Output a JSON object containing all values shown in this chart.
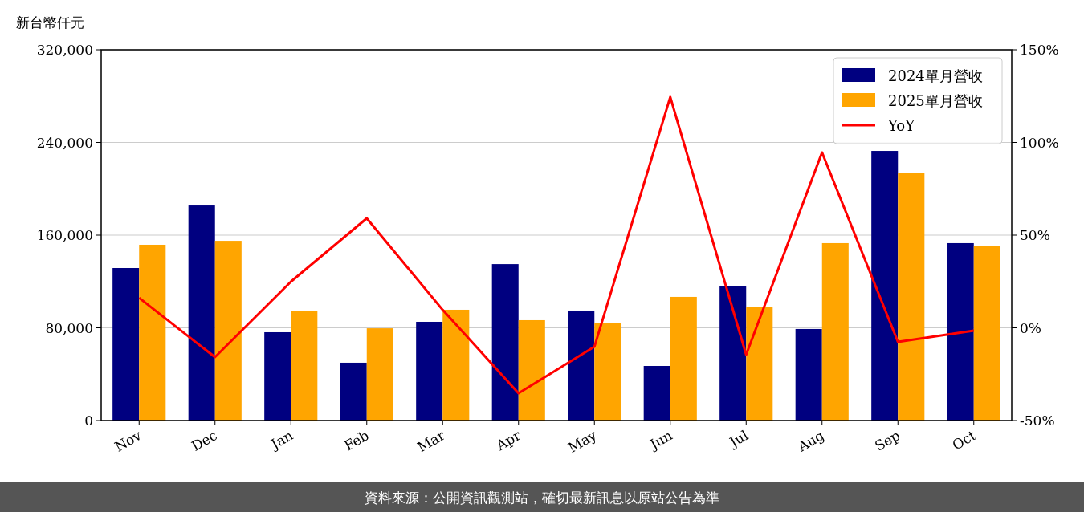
{
  "chart_data": {
    "type": "bar",
    "ylabel": "新台幣仟元",
    "categories": [
      "Nov",
      "Dec",
      "Jan",
      "Feb",
      "Mar",
      "Apr",
      "May",
      "Jun",
      "Jul",
      "Aug",
      "Sep",
      "Oct"
    ],
    "series": [
      {
        "name": "2024單月營收",
        "color": "#000080",
        "values": [
          131600,
          185600,
          76200,
          49900,
          85200,
          135000,
          94900,
          47100,
          115700,
          79000,
          232700,
          153100
        ]
      },
      {
        "name": "2025單月營收",
        "color": "#ffa500",
        "values": [
          151700,
          155100,
          94900,
          79600,
          95600,
          86600,
          84500,
          106700,
          97700,
          153100,
          214000,
          150300
        ]
      },
      {
        "name": "YoY",
        "type": "line",
        "axis": "y2",
        "color": "#ff0000",
        "values": [
          16.2,
          -15.8,
          24.9,
          59.1,
          9.7,
          -35.3,
          -10.2,
          124.5,
          -14.5,
          94.6,
          -7.6,
          -1.5
        ]
      }
    ],
    "ylim": [
      0,
      320000
    ],
    "yticks": [
      0,
      {
        "value": 80000,
        "label": "80,000"
      },
      {
        "value": 160000,
        "label": "160,000"
      },
      {
        "value": 240000,
        "label": "240,000"
      },
      {
        "value": 320000,
        "label": "320,000"
      }
    ],
    "y2lim": [
      -50,
      150
    ],
    "y2ticks": [
      {
        "value": -50,
        "label": "-50%"
      },
      {
        "value": 0,
        "label": "0%"
      },
      {
        "value": 50,
        "label": "50%"
      },
      {
        "value": 100,
        "label": "100%"
      },
      {
        "value": 150,
        "label": "150%"
      }
    ],
    "grid": "y",
    "legend": "top right",
    "annotations": [
      "資料來源：公開資訊觀測站，確切最新訊息以原站公告為準"
    ]
  }
}
